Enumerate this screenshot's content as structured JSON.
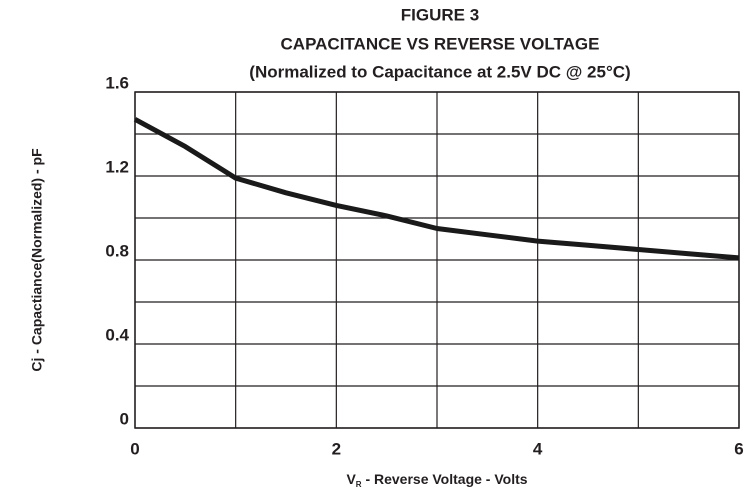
{
  "chart_data": {
    "type": "line",
    "title": [
      "FIGURE 3",
      "CAPACITANCE VS REVERSE VOLTAGE",
      "(Normalized to Capacitance at 2.5V DC @ 25°C)"
    ],
    "x_label": [
      "V",
      "R",
      " - Reverse Voltage - Volts"
    ],
    "y_label": "Cj - Capactiance(Normalized) - pF",
    "x": [
      0,
      0.5,
      0.9,
      1,
      1.5,
      2,
      2.5,
      3,
      3.5,
      4,
      4.5,
      5,
      5.5,
      6
    ],
    "series": [
      {
        "color": "#1a1a1a",
        "values": [
          1.47,
          1.34,
          1.22,
          1.19,
          1.12,
          1.06,
          1.01,
          0.95,
          0.92,
          0.89,
          0.87,
          0.85,
          0.83,
          0.81
        ]
      }
    ],
    "xlim": [
      0,
      6
    ],
    "ylim": [
      0,
      1.6
    ],
    "xticks": [
      0,
      2,
      4,
      6
    ],
    "yticks": [
      0,
      0.4,
      0.8,
      1.2,
      1.6
    ],
    "minor_xticks": [
      1,
      3,
      5
    ],
    "minor_yticks": [
      0.2,
      0.6,
      1.0,
      1.4
    ],
    "grid": true
  }
}
